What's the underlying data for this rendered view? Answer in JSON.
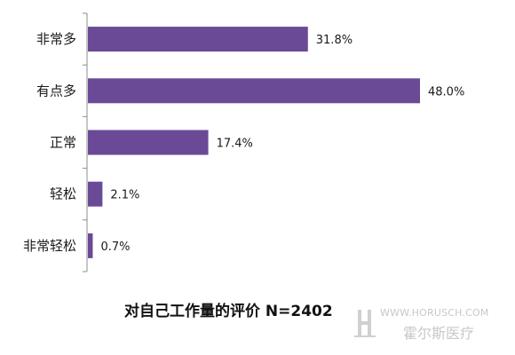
{
  "chart_data": {
    "type": "bar",
    "orientation": "horizontal",
    "title": "对自己工作量的评价 N=2402",
    "categories": [
      "非常多",
      "有点多",
      "正常",
      "轻松",
      "非常轻松"
    ],
    "values": [
      31.8,
      48.0,
      17.4,
      2.1,
      0.7
    ],
    "value_labels": [
      "31.8%",
      "48.0%",
      "17.4%",
      "2.1%",
      "0.7%"
    ],
    "xlabel": "",
    "ylabel": "",
    "xlim": [
      0,
      48.0
    ],
    "grid": false,
    "legend": "none",
    "bar_color": "#6a4a96",
    "axis_color": "#8c8c8c"
  },
  "watermark": {
    "url": "WWW.HORUSCH.COM",
    "name": "霍尔斯医疗",
    "color": "#c8c8c8"
  }
}
